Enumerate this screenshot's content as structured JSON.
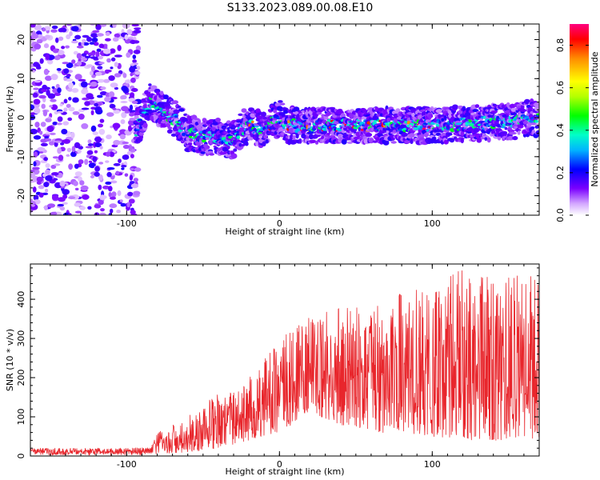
{
  "figure": {
    "title": "S133.2023.089.00.08.E10"
  },
  "chart_data": [
    {
      "type": "heatmap",
      "title": "",
      "xlabel": "Height of straight line (km)",
      "ylabel": "Frequency (Hz)",
      "xlim": [
        -163,
        170
      ],
      "ylim": [
        -25,
        24
      ],
      "x_ticks": [
        -100,
        0,
        100
      ],
      "y_ticks": [
        -20,
        -10,
        0,
        10,
        20
      ],
      "colorbar": {
        "label": "Normalized spectral amplitude",
        "range": [
          0.0,
          0.9
        ],
        "ticks": [
          0.0,
          0.2,
          0.4,
          0.6,
          0.8
        ],
        "tick_labels": [
          "0.0",
          "0.2",
          "0.4",
          "0.6",
          "0.8"
        ]
      },
      "ridge_profile": {
        "x": [
          -163,
          -100,
          -95,
          -90,
          -85,
          -80,
          -70,
          -60,
          -50,
          -40,
          -30,
          -25,
          -20,
          -10,
          0,
          5,
          20,
          50,
          100,
          150,
          170
        ],
        "frequency": [
          0,
          0,
          -5,
          0,
          4,
          3,
          0,
          -4,
          -5,
          -5,
          -6,
          -3,
          -2,
          -3,
          0,
          -2,
          -2,
          -2,
          -2,
          -1,
          0
        ]
      },
      "noise_region": {
        "x_range": [
          -163,
          -92
        ],
        "frequency_range": [
          -25,
          24
        ]
      }
    },
    {
      "type": "line",
      "title": "",
      "xlabel": "Height of straight line (km)",
      "ylabel": "SNR (10 * v/v)",
      "xlim": [
        -163,
        170
      ],
      "ylim": [
        0,
        490
      ],
      "x_ticks": [
        -100,
        0,
        100
      ],
      "y_ticks": [
        0,
        100,
        200,
        300,
        400
      ],
      "color": "#e8262c",
      "envelope": {
        "x": [
          -163,
          -100,
          -85,
          -80,
          -60,
          -40,
          -20,
          0,
          20,
          40,
          60,
          80,
          100,
          120,
          140,
          160,
          170
        ],
        "lower": [
          2,
          2,
          3,
          5,
          10,
          20,
          40,
          60,
          110,
          80,
          60,
          60,
          50,
          40,
          40,
          40,
          40
        ],
        "upper": [
          20,
          20,
          22,
          60,
          100,
          160,
          200,
          300,
          360,
          380,
          400,
          420,
          430,
          480,
          460,
          460,
          460
        ]
      }
    }
  ]
}
